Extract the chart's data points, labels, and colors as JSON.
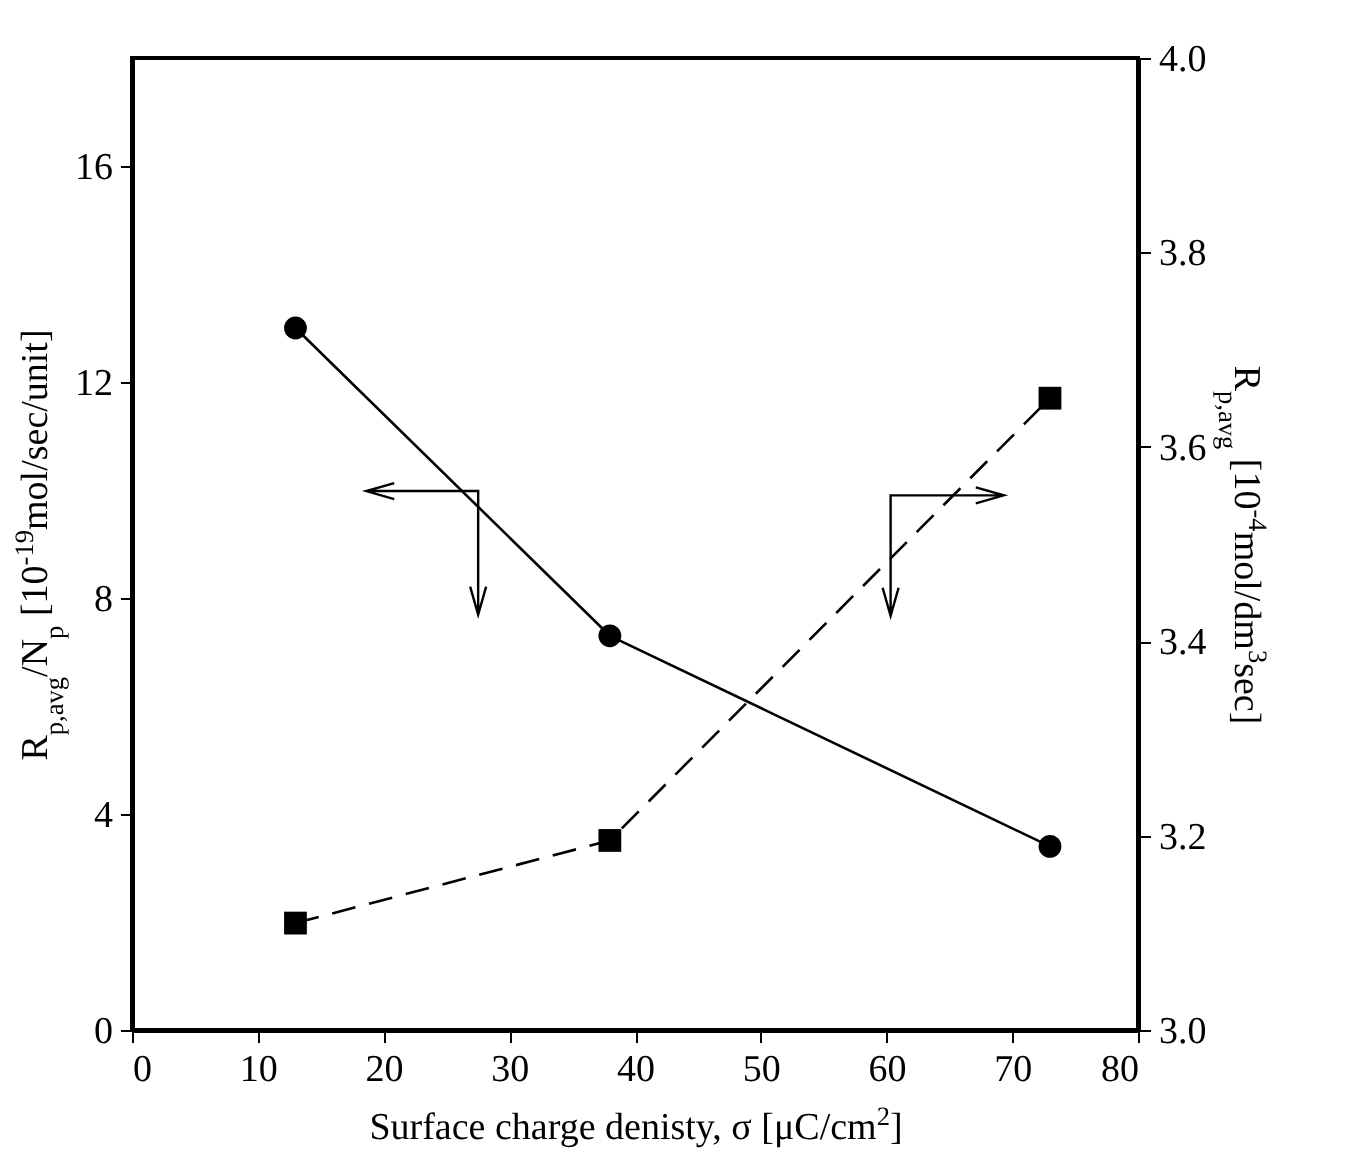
{
  "chart_data": {
    "type": "line",
    "xlabel": "Surface charge denisty, σ [μC/cm$^{2}$]",
    "ylabel": "R$_{p,avg}$/N$_{p}$ [10$^{-19}$mol/sec/unit]",
    "y2label": "R$_{p,avg}$ [10$^{-4}$mol/dm$^{3}$sec]",
    "x": [
      13,
      38,
      73
    ],
    "series": [
      {
        "color": "#000000",
        "values": [
          13.0,
          7.3,
          3.4
        ],
        "marker": "circle",
        "line_style": "solid"
      },
      {
        "color": "#000000",
        "values": [
          3.11,
          3.195,
          3.65
        ],
        "axis": "y2",
        "marker": "square",
        "line_style": "dashed"
      }
    ],
    "xlim": [
      0,
      80
    ],
    "xticks": [
      0,
      10,
      20,
      30,
      40,
      50,
      60,
      70,
      80
    ],
    "ylim": [
      0,
      18
    ],
    "yticks": [
      0,
      4,
      8,
      12,
      16
    ],
    "y2lim": [
      3.0,
      4.0
    ],
    "y2ticks": [
      {
        "value": 3,
        "label": "3.0"
      },
      3.2,
      3.4,
      3.6,
      3.8,
      {
        "value": 4,
        "label": "4.0"
      }
    ]
  }
}
